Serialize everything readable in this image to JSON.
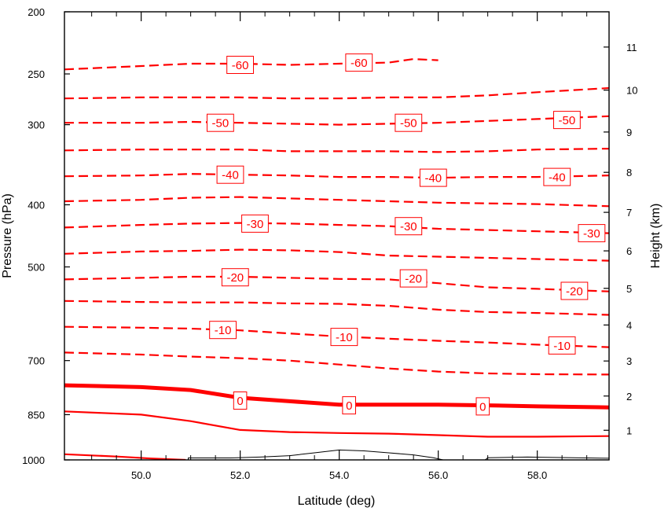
{
  "chart_data": {
    "type": "contour",
    "title": "",
    "xlabel": "Latitude (deg)",
    "ylabel_left": "Pressure (hPa)",
    "ylabel_right": "Height (km)",
    "xlim": [
      48.45,
      59.45
    ],
    "ylim_pressure": [
      1000,
      200
    ],
    "y_scale": "log",
    "x_ticks": [
      {
        "value": 50.0,
        "label": "50.0"
      },
      {
        "value": 52.0,
        "label": "52.0"
      },
      {
        "value": 54.0,
        "label": "54.0"
      },
      {
        "value": 56.0,
        "label": "56.0"
      },
      {
        "value": 58.0,
        "label": "58.0"
      }
    ],
    "x_minor_ticks": [
      49.0,
      49.5,
      50.5,
      51.0,
      51.5,
      52.5,
      53.0,
      53.5,
      54.5,
      55.0,
      55.5,
      56.5,
      57.0,
      57.5,
      58.5,
      59.0
    ],
    "y_ticks_pressure": [
      {
        "value": 200,
        "label": "200"
      },
      {
        "value": 250,
        "label": "250"
      },
      {
        "value": 300,
        "label": "300"
      },
      {
        "value": 400,
        "label": "400"
      },
      {
        "value": 500,
        "label": "500"
      },
      {
        "value": 700,
        "label": "700"
      },
      {
        "value": 850,
        "label": "850"
      },
      {
        "value": 1000,
        "label": "1000"
      }
    ],
    "y_ticks_height": [
      {
        "value": 1,
        "label": "1",
        "pressure": 899
      },
      {
        "value": 2,
        "label": "2",
        "pressure": 795
      },
      {
        "value": 3,
        "label": "3",
        "pressure": 701
      },
      {
        "value": 4,
        "label": "4",
        "pressure": 616
      },
      {
        "value": 5,
        "label": "5",
        "pressure": 540
      },
      {
        "value": 6,
        "label": "6",
        "pressure": 472
      },
      {
        "value": 7,
        "label": "7",
        "pressure": 411
      },
      {
        "value": 8,
        "label": "8",
        "pressure": 356
      },
      {
        "value": 9,
        "label": "9",
        "pressure": 308
      },
      {
        "value": 10,
        "label": "10",
        "pressure": 265
      },
      {
        "value": 11,
        "label": "11",
        "pressure": 227
      }
    ],
    "line_color": "#ff0000",
    "terrain_color": "#000000",
    "contours": [
      {
        "level": -60,
        "style": "dashed",
        "points": [
          [
            48.45,
            246
          ],
          [
            50.0,
            243
          ],
          [
            51.0,
            241
          ],
          [
            52.0,
            241
          ],
          [
            53.0,
            242
          ],
          [
            54.0,
            241
          ],
          [
            55.0,
            240
          ],
          [
            55.5,
            237
          ],
          [
            56.0,
            238
          ]
        ],
        "labels": [
          [
            52.0,
            242
          ],
          [
            54.4,
            240
          ]
        ]
      },
      {
        "level": -55,
        "style": "dashed",
        "points": [
          [
            48.45,
            273
          ],
          [
            50.0,
            272
          ],
          [
            52.0,
            272
          ],
          [
            53.0,
            273
          ],
          [
            54.0,
            273
          ],
          [
            55.0,
            272
          ],
          [
            56.0,
            272
          ],
          [
            57.0,
            270
          ],
          [
            58.0,
            267
          ],
          [
            59.45,
            263
          ]
        ],
        "labels": []
      },
      {
        "level": -50,
        "style": "dashed",
        "points": [
          [
            48.45,
            298
          ],
          [
            50.0,
            298
          ],
          [
            51.0,
            297
          ],
          [
            52.0,
            298
          ],
          [
            53.0,
            299
          ],
          [
            54.0,
            300
          ],
          [
            55.0,
            299
          ],
          [
            56.0,
            298
          ],
          [
            57.0,
            296
          ],
          [
            58.0,
            294
          ],
          [
            59.45,
            291
          ]
        ],
        "labels": [
          [
            51.6,
            298
          ],
          [
            55.4,
            298
          ],
          [
            58.6,
            295
          ]
        ]
      },
      {
        "level": -45,
        "style": "dashed",
        "points": [
          [
            48.45,
            329
          ],
          [
            50.0,
            328
          ],
          [
            52.0,
            328
          ],
          [
            53.0,
            330
          ],
          [
            54.0,
            330
          ],
          [
            55.0,
            330
          ],
          [
            56.0,
            331
          ],
          [
            57.0,
            330
          ],
          [
            58.0,
            328
          ],
          [
            59.45,
            327
          ]
        ],
        "labels": []
      },
      {
        "level": -40,
        "style": "dashed",
        "points": [
          [
            48.45,
            361
          ],
          [
            50.0,
            360
          ],
          [
            51.0,
            358
          ],
          [
            52.0,
            359
          ],
          [
            53.0,
            360
          ],
          [
            54.0,
            362
          ],
          [
            55.0,
            362
          ],
          [
            56.0,
            363
          ],
          [
            57.0,
            362
          ],
          [
            58.0,
            362
          ],
          [
            59.45,
            360
          ]
        ],
        "labels": [
          [
            51.8,
            359
          ],
          [
            55.9,
            363
          ],
          [
            58.4,
            362
          ]
        ]
      },
      {
        "level": -35,
        "style": "dashed",
        "points": [
          [
            48.45,
            395
          ],
          [
            50.0,
            393
          ],
          [
            51.0,
            390
          ],
          [
            52.0,
            389
          ],
          [
            53.0,
            391
          ],
          [
            54.0,
            393
          ],
          [
            55.0,
            395
          ],
          [
            56.0,
            397
          ],
          [
            57.0,
            398
          ],
          [
            58.0,
            399
          ],
          [
            59.45,
            402
          ]
        ],
        "labels": []
      },
      {
        "level": -30,
        "style": "dashed",
        "points": [
          [
            48.45,
            434
          ],
          [
            50.0,
            430
          ],
          [
            51.0,
            428
          ],
          [
            52.0,
            427
          ],
          [
            53.0,
            428
          ],
          [
            54.0,
            430
          ],
          [
            55.0,
            432
          ],
          [
            56.0,
            436
          ],
          [
            57.0,
            438
          ],
          [
            58.0,
            440
          ],
          [
            59.45,
            443
          ]
        ],
        "labels": [
          [
            52.3,
            428
          ],
          [
            55.4,
            432
          ],
          [
            59.1,
            443
          ]
        ]
      },
      {
        "level": -25,
        "style": "dashed",
        "points": [
          [
            48.45,
            477
          ],
          [
            50.0,
            473
          ],
          [
            51.0,
            472
          ],
          [
            52.0,
            470
          ],
          [
            53.0,
            471
          ],
          [
            54.0,
            474
          ],
          [
            55.0,
            480
          ],
          [
            56.0,
            482
          ],
          [
            57.0,
            484
          ],
          [
            58.0,
            486
          ],
          [
            59.45,
            489
          ]
        ],
        "labels": []
      },
      {
        "level": -20,
        "style": "dashed",
        "points": [
          [
            48.45,
            523
          ],
          [
            50.0,
            520
          ],
          [
            51.0,
            518
          ],
          [
            52.0,
            518
          ],
          [
            53.0,
            520
          ],
          [
            54.0,
            522
          ],
          [
            55.0,
            523
          ],
          [
            56.0,
            530
          ],
          [
            57.0,
            538
          ],
          [
            58.0,
            541
          ],
          [
            59.45,
            546
          ]
        ],
        "labels": [
          [
            51.9,
            519
          ],
          [
            55.5,
            521
          ],
          [
            58.75,
            545
          ]
        ]
      },
      {
        "level": -15,
        "style": "dashed",
        "points": [
          [
            48.45,
            565
          ],
          [
            50.0,
            567
          ],
          [
            51.0,
            568
          ],
          [
            52.0,
            568
          ],
          [
            53.0,
            570
          ],
          [
            54.0,
            571
          ],
          [
            55.0,
            575
          ],
          [
            56.0,
            583
          ],
          [
            57.0,
            588
          ],
          [
            58.0,
            590
          ],
          [
            59.45,
            594
          ]
        ],
        "labels": []
      },
      {
        "level": -10,
        "style": "dashed",
        "points": [
          [
            48.45,
            620
          ],
          [
            50.0,
            622
          ],
          [
            51.0,
            624
          ],
          [
            52.0,
            628
          ],
          [
            53.0,
            635
          ],
          [
            54.0,
            642
          ],
          [
            55.0,
            647
          ],
          [
            56.0,
            652
          ],
          [
            57.0,
            656
          ],
          [
            58.0,
            661
          ],
          [
            59.45,
            667
          ]
        ],
        "labels": [
          [
            51.65,
            627
          ],
          [
            54.1,
            643
          ],
          [
            58.5,
            663
          ]
        ]
      },
      {
        "level": -5,
        "style": "dashed",
        "points": [
          [
            48.45,
            680
          ],
          [
            50.0,
            685
          ],
          [
            51.0,
            690
          ],
          [
            52.0,
            694
          ],
          [
            53.0,
            700
          ],
          [
            54.0,
            710
          ],
          [
            55.0,
            720
          ],
          [
            56.0,
            728
          ],
          [
            57.0,
            733
          ],
          [
            58.0,
            735
          ],
          [
            59.45,
            736
          ]
        ],
        "labels": []
      },
      {
        "level": 0,
        "style": "thick",
        "points": [
          [
            48.45,
            765
          ],
          [
            50.0,
            770
          ],
          [
            51.0,
            778
          ],
          [
            52.0,
            800
          ],
          [
            53.0,
            810
          ],
          [
            54.0,
            820
          ],
          [
            55.0,
            820
          ],
          [
            56.0,
            820
          ],
          [
            57.0,
            822
          ],
          [
            58.0,
            825
          ],
          [
            59.45,
            828
          ]
        ],
        "labels": [
          [
            52.0,
            808
          ],
          [
            54.2,
            822
          ],
          [
            56.9,
            825
          ]
        ]
      },
      {
        "level": 5,
        "style": "solid",
        "points": [
          [
            48.45,
            840
          ],
          [
            50.0,
            850
          ],
          [
            51.0,
            870
          ],
          [
            52.0,
            898
          ],
          [
            53.0,
            905
          ],
          [
            54.0,
            908
          ],
          [
            55.0,
            910
          ],
          [
            56.0,
            915
          ],
          [
            57.0,
            920
          ],
          [
            58.0,
            920
          ],
          [
            59.45,
            918
          ]
        ],
        "labels": []
      },
      {
        "level": 10,
        "style": "solid",
        "points": [
          [
            48.45,
            980
          ],
          [
            49.5,
            988
          ],
          [
            50.2,
            995
          ],
          [
            50.9,
            1000
          ]
        ],
        "labels": []
      }
    ],
    "terrain_outline": [
      [
        50.95,
        1000
      ],
      [
        50.95,
        993
      ],
      [
        51.8,
        993
      ],
      [
        52.4,
        990
      ],
      [
        53.0,
        985
      ],
      [
        53.5,
        975
      ],
      [
        54.0,
        965
      ],
      [
        54.5,
        968
      ],
      [
        55.0,
        975
      ],
      [
        55.5,
        982
      ],
      [
        55.9,
        992
      ],
      [
        56.1,
        1000
      ]
    ],
    "terrain_outline_2": [
      [
        56.95,
        1000
      ],
      [
        57.0,
        992
      ],
      [
        57.8,
        990
      ],
      [
        59.45,
        994
      ]
    ]
  }
}
